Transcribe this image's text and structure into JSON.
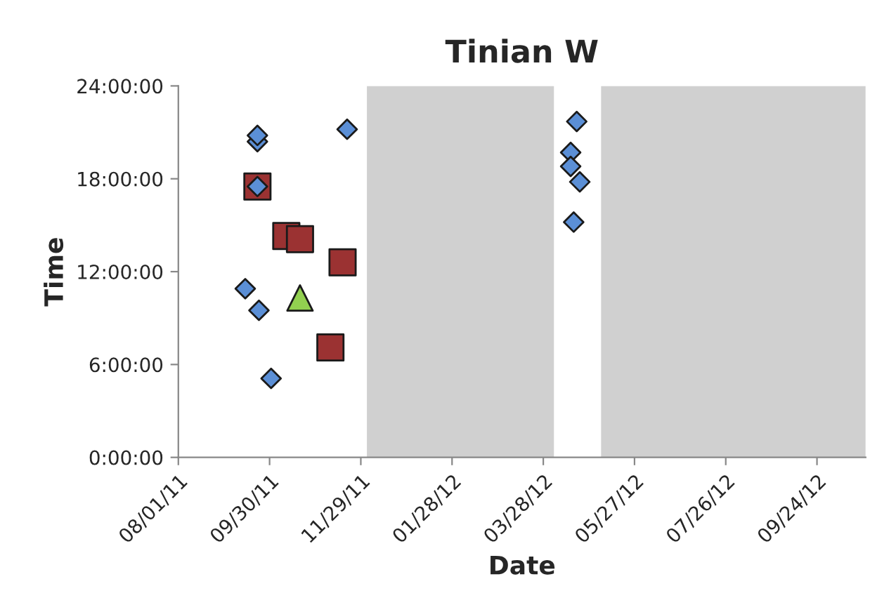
{
  "chart_data": {
    "type": "scatter",
    "title": "Tinian W",
    "xlabel": "Date",
    "ylabel": "Time",
    "xlim": [
      "2011-08-01",
      "2012-10-26"
    ],
    "xticks": [
      {
        "value": "2011-08-01",
        "label": "08/01/11"
      },
      {
        "value": "2011-09-30",
        "label": "09/30/11"
      },
      {
        "value": "2011-11-29",
        "label": "11/29/11"
      },
      {
        "value": "2012-01-28",
        "label": "01/28/12"
      },
      {
        "value": "2012-03-28",
        "label": "03/28/12"
      },
      {
        "value": "2012-05-27",
        "label": "05/27/12"
      },
      {
        "value": "2012-07-26",
        "label": "07/26/12"
      },
      {
        "value": "2012-09-24",
        "label": "09/24/12"
      }
    ],
    "ylim": [
      0,
      24
    ],
    "yticks": [
      {
        "value": 0,
        "label": "0:00:00"
      },
      {
        "value": 6,
        "label": "6:00:00"
      },
      {
        "value": 12,
        "label": "12:00:00"
      },
      {
        "value": 18,
        "label": "18:00:00"
      },
      {
        "value": 24,
        "label": "24:00:00"
      }
    ],
    "bands": [
      {
        "axis": "x",
        "from": "2011-12-03",
        "to": "2012-04-04",
        "color": "#d0d0d0"
      },
      {
        "axis": "x",
        "from": "2012-05-05",
        "to": "2012-10-26",
        "color": "#d0d0d0"
      }
    ],
    "grid": false,
    "legend": false,
    "series": [
      {
        "color": "#5b8fd6",
        "marker": "diamond",
        "x": [
          "2011-09-22",
          "2011-09-22",
          "2011-11-20",
          "2011-09-22",
          "2011-09-14",
          "2011-09-23",
          "2011-10-01",
          "2012-04-19",
          "2012-04-15",
          "2012-04-15",
          "2012-04-21",
          "2012-04-17"
        ],
        "values": [
          20.4,
          20.8,
          21.2,
          17.5,
          10.9,
          9.5,
          5.1,
          21.7,
          19.7,
          18.8,
          17.8,
          15.2
        ]
      },
      {
        "color": "#9b3232",
        "marker": "square",
        "x": [
          "2011-09-22",
          "2011-10-11",
          "2011-10-20",
          "2011-11-17",
          "2011-11-09"
        ],
        "values": [
          17.5,
          14.3,
          14.1,
          12.6,
          7.1
        ]
      },
      {
        "color": "#92d050",
        "marker": "triangle",
        "x": [
          "2011-10-20"
        ],
        "values": [
          10.3
        ]
      }
    ]
  }
}
